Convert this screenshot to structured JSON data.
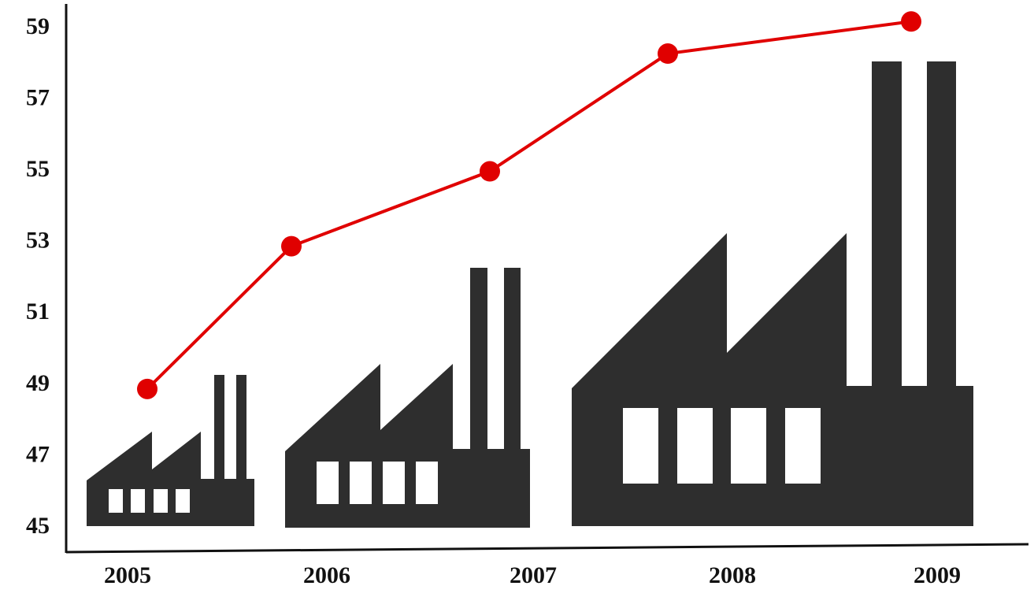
{
  "chart_data": {
    "type": "line",
    "title": "",
    "xlabel": "",
    "ylabel": "",
    "categories": [
      "2005",
      "2006",
      "2007",
      "2008",
      "2009"
    ],
    "series": [
      {
        "values": [
          48.8,
          52.8,
          54.9,
          58.2,
          59.1
        ]
      }
    ],
    "ylim": [
      45,
      59.5
    ],
    "yticks": [
      "45",
      "47",
      "49",
      "51",
      "53",
      "55",
      "57",
      "59"
    ],
    "grid": false,
    "legend": "none",
    "line_color": "#e00000",
    "marker_color": "#e00000",
    "factory_color": "#2e2e2e",
    "decoration": "factory-silhouettes"
  }
}
